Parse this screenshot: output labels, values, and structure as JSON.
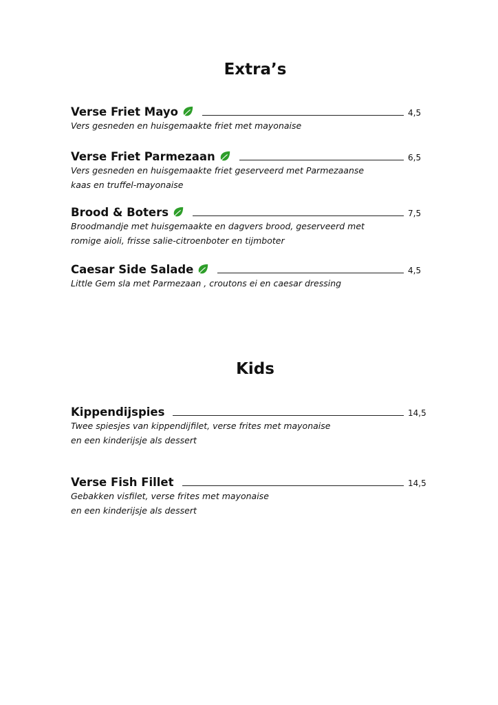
{
  "sections": [
    {
      "heading": "Extra’s",
      "items": [
        {
          "title": "Verse Friet Mayo",
          "vegetarian": true,
          "price": "4,5",
          "desc": [
            "Vers gesneden en huisgemaakte friet met mayonaise"
          ]
        },
        {
          "title": "Verse Friet Parmezaan",
          "vegetarian": true,
          "price": "6,5",
          "desc": [
            "Vers gesneden en huisgemaakte friet geserveerd met Parmezaanse",
            "kaas en truffel-mayonaise"
          ]
        },
        {
          "title": "Brood & Boters",
          "vegetarian": true,
          "price": "7,5",
          "desc": [
            "Broodmandje met huisgemaakte en dagvers brood, geserveerd met",
            "romige aioli, frisse salie-citroenboter en tijmboter"
          ]
        },
        {
          "title": "Caesar Side Salade",
          "vegetarian": true,
          "price": "4,5",
          "desc": [
            "Little Gem sla met Parmezaan , croutons  ei en caesar dressing"
          ]
        }
      ]
    },
    {
      "heading": "Kids",
      "items": [
        {
          "title": "Kippendijspies",
          "vegetarian": false,
          "price": "14,5",
          "desc": [
            "Twee spiesjes van kippendijfilet, verse frites met mayonaise",
            "en een kinderijsje als dessert"
          ]
        },
        {
          "title": "Verse Fish Fillet",
          "vegetarian": false,
          "price": "14,5",
          "desc": [
            "Gebakken visfilet, verse frites met mayonaise",
            "en een kinderijsje als dessert"
          ]
        }
      ]
    }
  ],
  "colors": {
    "leaf": "#2e9e2a"
  }
}
